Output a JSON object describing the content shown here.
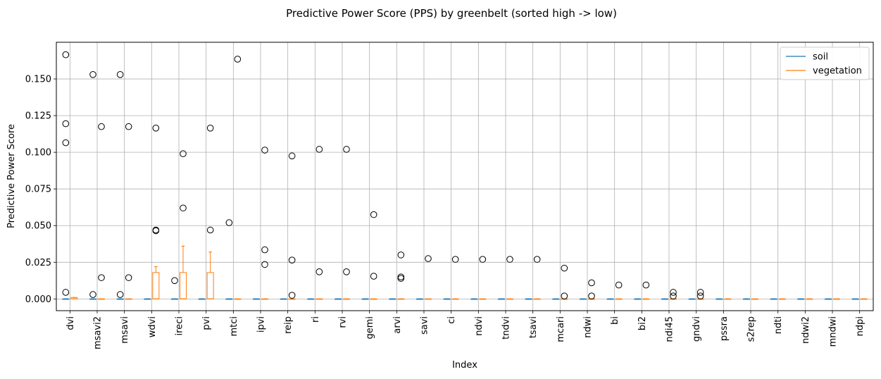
{
  "chart_data": {
    "type": "box",
    "title": "Predictive Power Score (PPS) by greenbelt (sorted high -> low)",
    "xlabel": "Index",
    "ylabel": "Predictive Power Score",
    "ylim": [
      -0.008,
      0.175
    ],
    "yticks": [
      0.0,
      0.025,
      0.05,
      0.075,
      0.1,
      0.125,
      0.15
    ],
    "ytick_labels": [
      "0.000",
      "0.025",
      "0.050",
      "0.075",
      "0.100",
      "0.125",
      "0.150"
    ],
    "grid": true,
    "legend_position": "top-right",
    "categories": [
      "dvi",
      "msavi2",
      "msavi",
      "wdvi",
      "ireci",
      "pvi",
      "mtci",
      "ipvi",
      "reip",
      "ri",
      "rvi",
      "gemi",
      "arvi",
      "savi",
      "ci",
      "ndvi",
      "tndvi",
      "tsavi",
      "mcari",
      "ndwi",
      "bi",
      "bi2",
      "ndi45",
      "gndvi",
      "pssra",
      "s2rep",
      "ndti",
      "ndwi2",
      "mndwi",
      "ndpi"
    ],
    "series": [
      {
        "name": "soil",
        "color": "#1f77b4",
        "boxes": [
          {
            "q1": 0,
            "median": 0,
            "q3": 0,
            "whislo": 0,
            "whishi": 0,
            "fliers": [
              0.1665,
              0.1195,
              0.1065,
              0.0045
            ]
          },
          {
            "q1": 0,
            "median": 0,
            "q3": 0,
            "whislo": 0,
            "whishi": 0,
            "fliers": [
              0.153,
              0.003
            ]
          },
          {
            "q1": 0,
            "median": 0,
            "q3": 0,
            "whislo": 0,
            "whishi": 0,
            "fliers": [
              0.153,
              0.003
            ]
          },
          {
            "q1": 0,
            "median": 0,
            "q3": 0,
            "whislo": 0,
            "whishi": 0,
            "fliers": []
          },
          {
            "q1": 0,
            "median": 0,
            "q3": 0,
            "whislo": 0,
            "whishi": 0,
            "fliers": [
              0.0125
            ]
          },
          {
            "q1": 0,
            "median": 0,
            "q3": 0,
            "whislo": 0,
            "whishi": 0,
            "fliers": []
          },
          {
            "q1": 0,
            "median": 0,
            "q3": 0,
            "whislo": 0,
            "whishi": 0,
            "fliers": [
              0.052
            ]
          },
          {
            "q1": 0,
            "median": 0,
            "q3": 0,
            "whislo": 0,
            "whishi": 0,
            "fliers": []
          },
          {
            "q1": 0,
            "median": 0,
            "q3": 0,
            "whislo": 0,
            "whishi": 0,
            "fliers": []
          },
          {
            "q1": 0,
            "median": 0,
            "q3": 0,
            "whislo": 0,
            "whishi": 0,
            "fliers": []
          },
          {
            "q1": 0,
            "median": 0,
            "q3": 0,
            "whislo": 0,
            "whishi": 0,
            "fliers": []
          },
          {
            "q1": 0,
            "median": 0,
            "q3": 0,
            "whislo": 0,
            "whishi": 0,
            "fliers": []
          },
          {
            "q1": 0,
            "median": 0,
            "q3": 0,
            "whislo": 0,
            "whishi": 0,
            "fliers": []
          },
          {
            "q1": 0,
            "median": 0,
            "q3": 0,
            "whislo": 0,
            "whishi": 0,
            "fliers": []
          },
          {
            "q1": 0,
            "median": 0,
            "q3": 0,
            "whislo": 0,
            "whishi": 0,
            "fliers": []
          },
          {
            "q1": 0,
            "median": 0,
            "q3": 0,
            "whislo": 0,
            "whishi": 0,
            "fliers": []
          },
          {
            "q1": 0,
            "median": 0,
            "q3": 0,
            "whislo": 0,
            "whishi": 0,
            "fliers": []
          },
          {
            "q1": 0,
            "median": 0,
            "q3": 0,
            "whislo": 0,
            "whishi": 0,
            "fliers": []
          },
          {
            "q1": 0,
            "median": 0,
            "q3": 0,
            "whislo": 0,
            "whishi": 0,
            "fliers": []
          },
          {
            "q1": 0,
            "median": 0,
            "q3": 0,
            "whislo": 0,
            "whishi": 0,
            "fliers": []
          },
          {
            "q1": 0,
            "median": 0,
            "q3": 0,
            "whislo": 0,
            "whishi": 0,
            "fliers": []
          },
          {
            "q1": 0,
            "median": 0,
            "q3": 0,
            "whislo": 0,
            "whishi": 0,
            "fliers": []
          },
          {
            "q1": 0,
            "median": 0,
            "q3": 0,
            "whislo": 0,
            "whishi": 0,
            "fliers": []
          },
          {
            "q1": 0,
            "median": 0,
            "q3": 0,
            "whislo": 0,
            "whishi": 0,
            "fliers": []
          },
          {
            "q1": 0,
            "median": 0,
            "q3": 0,
            "whislo": 0,
            "whishi": 0,
            "fliers": []
          },
          {
            "q1": 0,
            "median": 0,
            "q3": 0,
            "whislo": 0,
            "whishi": 0,
            "fliers": []
          },
          {
            "q1": 0,
            "median": 0,
            "q3": 0,
            "whislo": 0,
            "whishi": 0,
            "fliers": []
          },
          {
            "q1": 0,
            "median": 0,
            "q3": 0,
            "whislo": 0,
            "whishi": 0,
            "fliers": []
          },
          {
            "q1": 0,
            "median": 0,
            "q3": 0,
            "whislo": 0,
            "whishi": 0,
            "fliers": []
          },
          {
            "q1": 0,
            "median": 0,
            "q3": 0,
            "whislo": 0,
            "whishi": 0,
            "fliers": []
          }
        ]
      },
      {
        "name": "vegetation",
        "color": "#ff7f0e",
        "boxes": [
          {
            "q1": 0,
            "median": 0,
            "q3": 0.001,
            "whislo": 0,
            "whishi": 0.001,
            "fliers": []
          },
          {
            "q1": 0,
            "median": 0,
            "q3": 0,
            "whislo": 0,
            "whishi": 0,
            "fliers": [
              0.1175,
              0.0145
            ]
          },
          {
            "q1": 0,
            "median": 0,
            "q3": 0,
            "whislo": 0,
            "whishi": 0,
            "fliers": [
              0.1175,
              0.0145
            ]
          },
          {
            "q1": 0,
            "median": 0,
            "q3": 0.018,
            "whislo": 0,
            "whishi": 0.022,
            "fliers": [
              0.1165,
              0.047,
              0.0465
            ]
          },
          {
            "q1": 0,
            "median": 0,
            "q3": 0.018,
            "whislo": 0,
            "whishi": 0.036,
            "fliers": [
              0.099,
              0.062
            ]
          },
          {
            "q1": 0,
            "median": 0,
            "q3": 0.018,
            "whislo": 0,
            "whishi": 0.032,
            "fliers": [
              0.1165,
              0.047
            ]
          },
          {
            "q1": 0,
            "median": 0,
            "q3": 0,
            "whislo": 0,
            "whishi": 0,
            "fliers": [
              0.1635
            ]
          },
          {
            "q1": 0,
            "median": 0,
            "q3": 0,
            "whislo": 0,
            "whishi": 0,
            "fliers": [
              0.1015,
              0.0335,
              0.0235
            ]
          },
          {
            "q1": 0,
            "median": 0,
            "q3": 0,
            "whislo": 0,
            "whishi": 0,
            "fliers": [
              0.0975,
              0.0265,
              0.0025
            ]
          },
          {
            "q1": 0,
            "median": 0,
            "q3": 0,
            "whislo": 0,
            "whishi": 0,
            "fliers": [
              0.102,
              0.0185
            ]
          },
          {
            "q1": 0,
            "median": 0,
            "q3": 0,
            "whislo": 0,
            "whishi": 0,
            "fliers": [
              0.102,
              0.0185
            ]
          },
          {
            "q1": 0,
            "median": 0,
            "q3": 0,
            "whislo": 0,
            "whishi": 0,
            "fliers": [
              0.0575,
              0.0155
            ]
          },
          {
            "q1": 0,
            "median": 0,
            "q3": 0,
            "whislo": 0,
            "whishi": 0,
            "fliers": [
              0.03,
              0.015,
              0.014
            ]
          },
          {
            "q1": 0,
            "median": 0,
            "q3": 0,
            "whislo": 0,
            "whishi": 0,
            "fliers": [
              0.0275
            ]
          },
          {
            "q1": 0,
            "median": 0,
            "q3": 0,
            "whislo": 0,
            "whishi": 0,
            "fliers": [
              0.027
            ]
          },
          {
            "q1": 0,
            "median": 0,
            "q3": 0,
            "whislo": 0,
            "whishi": 0,
            "fliers": [
              0.027
            ]
          },
          {
            "q1": 0,
            "median": 0,
            "q3": 0,
            "whislo": 0,
            "whishi": 0,
            "fliers": [
              0.027
            ]
          },
          {
            "q1": 0,
            "median": 0,
            "q3": 0,
            "whislo": 0,
            "whishi": 0,
            "fliers": [
              0.027
            ]
          },
          {
            "q1": 0,
            "median": 0,
            "q3": 0,
            "whislo": 0,
            "whishi": 0,
            "fliers": [
              0.021,
              0.002
            ]
          },
          {
            "q1": 0,
            "median": 0,
            "q3": 0,
            "whislo": 0,
            "whishi": 0,
            "fliers": [
              0.011,
              0.002
            ]
          },
          {
            "q1": 0,
            "median": 0,
            "q3": 0,
            "whislo": 0,
            "whishi": 0,
            "fliers": [
              0.0095
            ]
          },
          {
            "q1": 0,
            "median": 0,
            "q3": 0,
            "whislo": 0,
            "whishi": 0,
            "fliers": [
              0.0095
            ]
          },
          {
            "q1": 0,
            "median": 0,
            "q3": 0,
            "whislo": 0,
            "whishi": 0,
            "fliers": [
              0.0045,
              0.002
            ]
          },
          {
            "q1": 0,
            "median": 0,
            "q3": 0,
            "whislo": 0,
            "whishi": 0,
            "fliers": [
              0.0045,
              0.002
            ]
          },
          {
            "q1": 0,
            "median": 0,
            "q3": 0,
            "whislo": 0,
            "whishi": 0,
            "fliers": []
          },
          {
            "q1": 0,
            "median": 0,
            "q3": 0,
            "whislo": 0,
            "whishi": 0,
            "fliers": []
          },
          {
            "q1": 0,
            "median": 0,
            "q3": 0,
            "whislo": 0,
            "whishi": 0,
            "fliers": []
          },
          {
            "q1": 0,
            "median": 0,
            "q3": 0,
            "whislo": 0,
            "whishi": 0,
            "fliers": []
          },
          {
            "q1": 0,
            "median": 0,
            "q3": 0,
            "whislo": 0,
            "whishi": 0,
            "fliers": []
          },
          {
            "q1": 0,
            "median": 0,
            "q3": 0,
            "whislo": 0,
            "whishi": 0,
            "fliers": []
          }
        ]
      }
    ]
  }
}
